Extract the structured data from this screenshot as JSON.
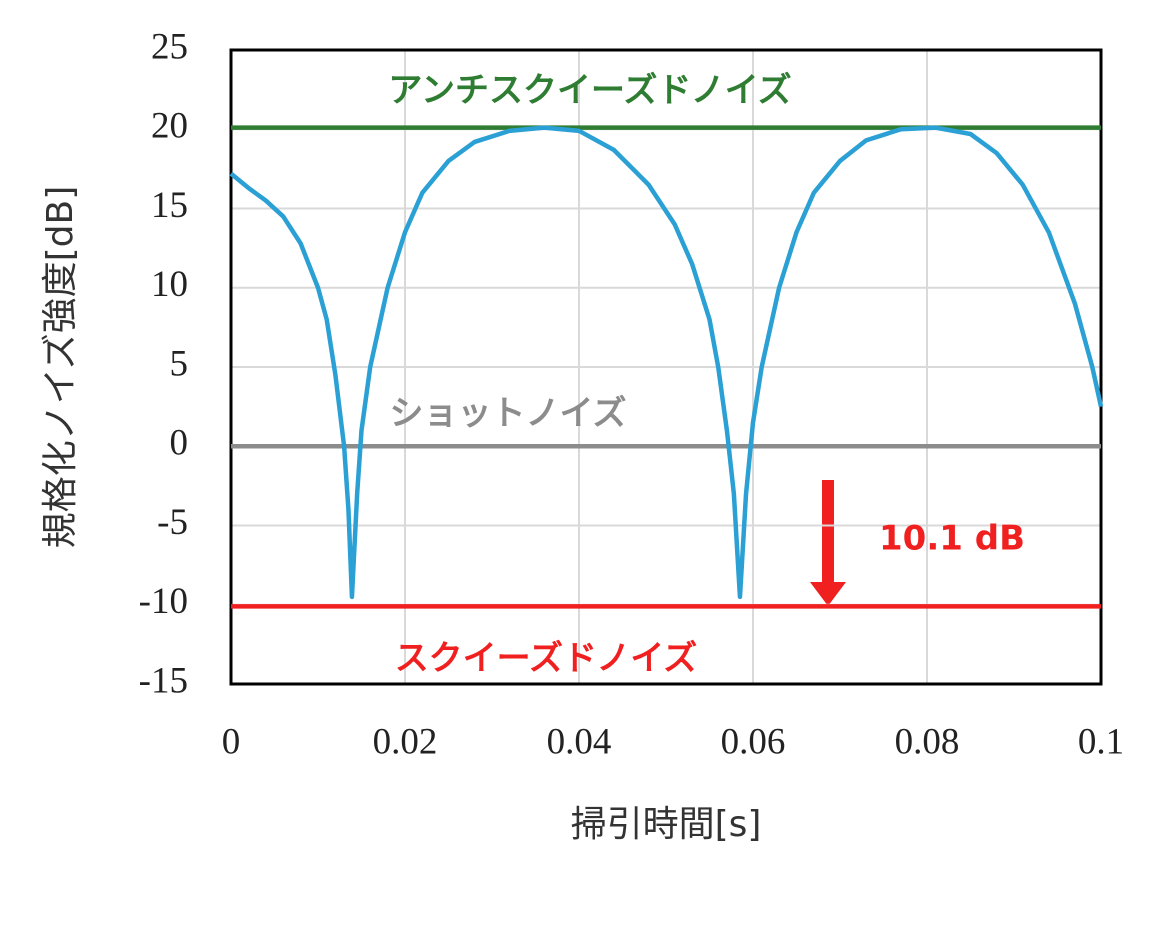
{
  "chart_data": {
    "type": "line",
    "xlabel": "掃引時間[s]",
    "ylabel": "規格化ノイズ強度[dB]",
    "xlim": [
      0,
      0.1
    ],
    "xticks": [
      0,
      0.02,
      0.04,
      0.06,
      0.08,
      0.1
    ],
    "ylim": [
      -15,
      25
    ],
    "yticks": [
      -15,
      -10,
      -5,
      0,
      5,
      10,
      15,
      20,
      25
    ],
    "grid": true,
    "series": [
      {
        "name": "アンチスクイーズドノイズ",
        "color": "#2e7d32",
        "x": [
          0,
          0.1
        ],
        "values": [
          20.1,
          20.1
        ]
      },
      {
        "name": "ショットノイズ",
        "color": "#8c8c8c",
        "x": [
          0,
          0.1
        ],
        "values": [
          0,
          0
        ]
      },
      {
        "name": "スクイーズドノイズ",
        "color": "#f02020",
        "x": [
          0,
          0.1
        ],
        "values": [
          -10.1,
          -10.1
        ]
      },
      {
        "color": "#2aa0d4",
        "x": [
          0,
          0.002,
          0.004,
          0.006,
          0.008,
          0.01,
          0.011,
          0.012,
          0.013,
          0.0135,
          0.0139,
          0.0145,
          0.015,
          0.016,
          0.018,
          0.02,
          0.022,
          0.025,
          0.028,
          0.032,
          0.036,
          0.04,
          0.044,
          0.048,
          0.051,
          0.053,
          0.055,
          0.056,
          0.057,
          0.0578,
          0.0585,
          0.0592,
          0.06,
          0.061,
          0.063,
          0.065,
          0.067,
          0.07,
          0.073,
          0.077,
          0.081,
          0.085,
          0.088,
          0.091,
          0.094,
          0.097,
          0.099,
          0.1
        ],
        "values": [
          17.2,
          16.3,
          15.5,
          14.5,
          12.8,
          10,
          8,
          4.5,
          0,
          -4,
          -9.5,
          -3,
          1,
          5,
          10,
          13.5,
          16,
          18,
          19.2,
          19.9,
          20.1,
          19.9,
          18.7,
          16.5,
          14,
          11.5,
          8,
          5,
          1,
          -3,
          -9.5,
          -3,
          1.5,
          5,
          10,
          13.5,
          16,
          18,
          19.3,
          20,
          20.1,
          19.7,
          18.5,
          16.5,
          13.5,
          9,
          5,
          2.5
        ]
      }
    ],
    "annotations": [
      {
        "text": "10.1 dB",
        "color": "#f02020"
      }
    ]
  }
}
